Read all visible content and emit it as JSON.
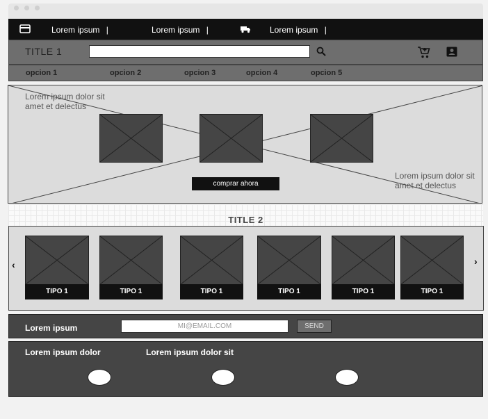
{
  "topbar": {
    "items": [
      {
        "label": "Lorem ipsum",
        "icon": "credit-card-icon"
      },
      {
        "label": "Lorem ipsum",
        "icon": ""
      },
      {
        "label": "Lorem ipsum",
        "icon": "truck-icon"
      }
    ],
    "separator": "|"
  },
  "header": {
    "title": "TITLE 1",
    "search": {
      "value": "",
      "placeholder": ""
    },
    "icons": [
      "search-icon",
      "cart-icon",
      "account-icon"
    ]
  },
  "nav": {
    "options": [
      "opcion 1",
      "opcion 2",
      "opcion 3",
      "opcion 4",
      "opcion 5"
    ]
  },
  "hero": {
    "text_left": "Lorem ipsum dolor sit amet et delectus",
    "text_right": "Lorem ipsum dolor sit amet et delectus",
    "button_label": "comprar ahora"
  },
  "section2": {
    "title": "TITLE 2",
    "cards": [
      "TIPO 1",
      "TIPO 1",
      "TIPO 1",
      "TIPO 1",
      "TIPO 1",
      "TIPO 1"
    ],
    "prev_arrow": "‹",
    "next_arrow": "›"
  },
  "newsletter": {
    "label": "Lorem ipsum",
    "email_placeholder": "MI@EMAIL.COM",
    "send_label": "SEND"
  },
  "footer": {
    "titles": [
      "Lorem ipsum dolor",
      "Lorem ipsum dolor sit"
    ]
  },
  "colors": {
    "dark": "#111111",
    "mid": "#6e6e6e",
    "panel": "#454545",
    "light": "#dcdcdc"
  }
}
